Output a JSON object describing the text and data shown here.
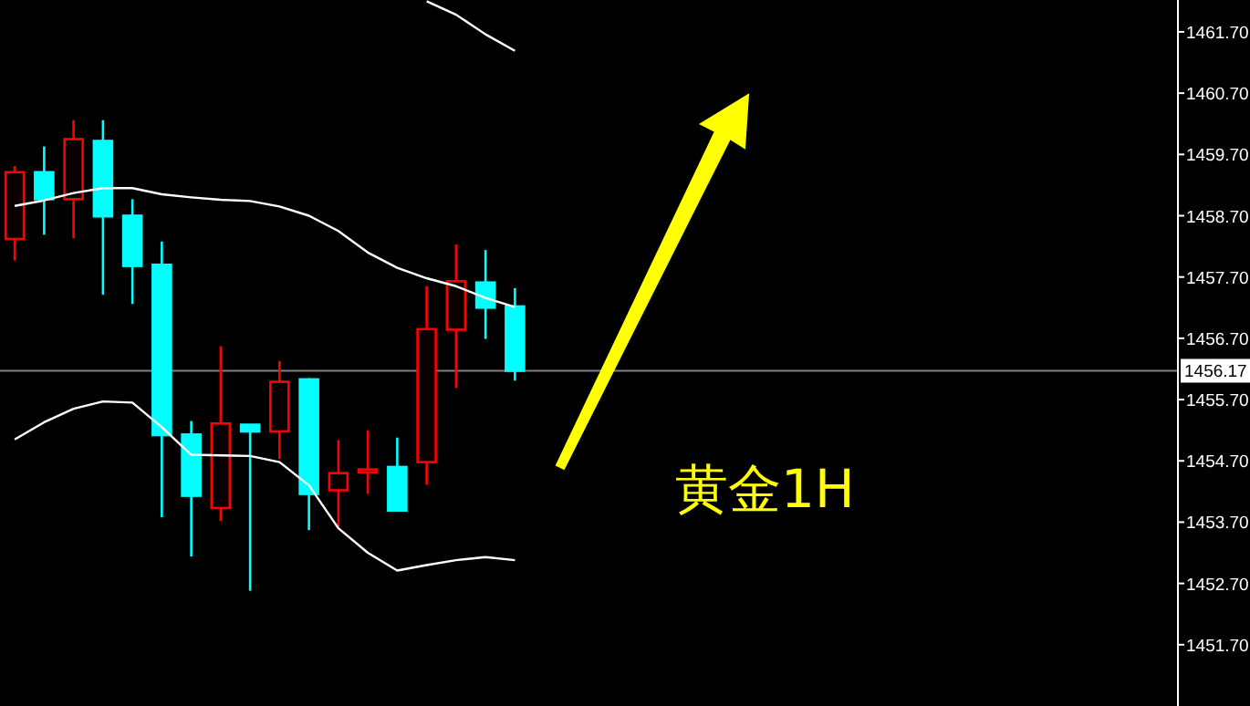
{
  "chart_data": {
    "type": "candlestick",
    "categories": [
      null,
      null,
      null,
      null,
      null,
      null,
      null,
      null,
      null,
      null,
      null,
      null,
      null,
      null,
      null,
      null,
      null,
      null,
      null,
      null,
      null,
      null,
      null,
      null,
      null,
      null,
      null,
      null,
      null,
      null,
      null,
      null,
      null,
      null,
      null,
      null,
      null,
      null,
      null,
      null
    ],
    "ohlc": [
      [
        1458.32,
        1459.51,
        1457.97,
        1459.41
      ],
      [
        1459.41,
        1459.83,
        1458.39,
        1458.97
      ],
      [
        1458.97,
        1460.26,
        1458.33,
        1459.95
      ],
      [
        1459.92,
        1460.26,
        1457.41,
        1458.69
      ],
      [
        1458.7,
        1458.97,
        1457.26,
        1457.88
      ],
      [
        1457.9,
        1458.28,
        1453.78,
        1455.12
      ],
      [
        1455.13,
        1455.35,
        1453.14,
        1454.13
      ],
      [
        1453.93,
        1456.57,
        1453.72,
        1455.31
      ],
      [
        1455.29,
        1455.29,
        1452.58,
        1455.18
      ],
      [
        1455.18,
        1456.33,
        1454.73,
        1455.99
      ],
      [
        1456.03,
        1456.05,
        1453.57,
        1454.16
      ],
      [
        1454.22,
        1455.04,
        1453.59,
        1454.5
      ],
      [
        1454.54,
        1455.2,
        1454.16,
        1454.56
      ],
      [
        1454.6,
        1455.08,
        1453.89,
        1453.89
      ],
      [
        1454.68,
        1457.55,
        1454.31,
        1456.85
      ],
      [
        1456.84,
        1458.23,
        1455.89,
        1457.63
      ],
      [
        1457.61,
        1458.14,
        1456.69,
        1457.2
      ],
      [
        1457.22,
        1457.52,
        1456.01,
        1456.17
      ],
      null,
      null,
      null,
      null,
      null,
      null,
      null,
      null,
      null,
      null,
      null,
      null,
      null,
      null,
      null,
      null,
      null,
      null,
      null,
      null,
      null,
      null
    ],
    "colors": [
      "#ff0000",
      "#00ffff",
      "#ff0000",
      "#00ffff",
      "#00ffff",
      "#00ffff",
      "#00ffff",
      "#ff0000",
      "#00ffff",
      "#ff0000",
      "#00ffff",
      "#ff0000",
      "#ff0000",
      "#00ffff",
      "#ff0000",
      "#ff0000",
      "#00ffff",
      "#00ffff",
      null,
      null,
      null,
      null,
      null,
      null,
      null,
      null,
      null,
      null,
      null,
      null,
      null,
      null,
      null,
      null,
      null,
      null,
      null,
      null,
      null,
      null
    ],
    "series": [
      {
        "type": "line",
        "color": "#ffffff",
        "values": [
          null,
          null,
          null,
          null,
          null,
          null,
          null,
          null,
          null,
          null,
          null,
          null,
          null,
          null,
          1462.2,
          1461.98,
          1461.66,
          1461.39,
          null,
          null,
          null,
          null,
          null,
          null,
          null,
          null,
          null,
          null,
          null,
          null,
          null,
          null,
          null,
          null,
          null,
          null,
          null,
          null,
          null,
          null
        ]
      },
      {
        "type": "line",
        "color": "#ffffff",
        "values": [
          1458.86,
          1458.95,
          1459.07,
          1459.15,
          1459.15,
          1459.05,
          1459.0,
          1458.96,
          1458.94,
          1458.85,
          1458.7,
          1458.45,
          1458.1,
          1457.85,
          1457.68,
          1457.55,
          1457.36,
          1457.21,
          null,
          null,
          null,
          null,
          null,
          null,
          null,
          null,
          null,
          null,
          null,
          null,
          null,
          null,
          null,
          null,
          null,
          null,
          null,
          null,
          null,
          null
        ]
      },
      {
        "type": "line",
        "color": "#ffffff",
        "values": [
          1455.05,
          1455.33,
          1455.55,
          1455.67,
          1455.65,
          1455.25,
          1454.8,
          1454.79,
          1454.78,
          1454.68,
          1454.3,
          1453.6,
          1453.2,
          1452.91,
          1453.0,
          1453.08,
          1453.13,
          1453.08,
          null,
          null,
          null,
          null,
          null,
          null,
          null,
          null,
          null,
          null,
          null,
          null,
          null,
          null,
          null,
          null,
          null,
          null,
          null,
          null,
          null,
          null
        ]
      }
    ],
    "ylim": [
      1450.7,
      1462.22
    ],
    "yticks": [
      {
        "value": 1451.7,
        "label": "1451.70"
      },
      {
        "value": 1452.7,
        "label": "1452.70"
      },
      {
        "value": 1453.7,
        "label": "1453.70"
      },
      {
        "value": 1454.7,
        "label": "1454.70"
      },
      {
        "value": 1455.7,
        "label": "1455.70"
      },
      {
        "value": 1456.7,
        "label": "1456.70"
      },
      {
        "value": 1457.7,
        "label": "1457.70"
      },
      {
        "value": 1458.7,
        "label": "1458.70"
      },
      {
        "value": 1459.7,
        "label": "1459.70"
      },
      {
        "value": 1460.7,
        "label": "1460.70"
      },
      {
        "value": 1461.7,
        "label": "1461.70"
      }
    ],
    "ref_lines": [
      {
        "axis": "y",
        "value": 1456.17,
        "label": "1456.17",
        "color": "#808080"
      }
    ],
    "annotations": [
      "黄金1H"
    ],
    "grid": false
  }
}
